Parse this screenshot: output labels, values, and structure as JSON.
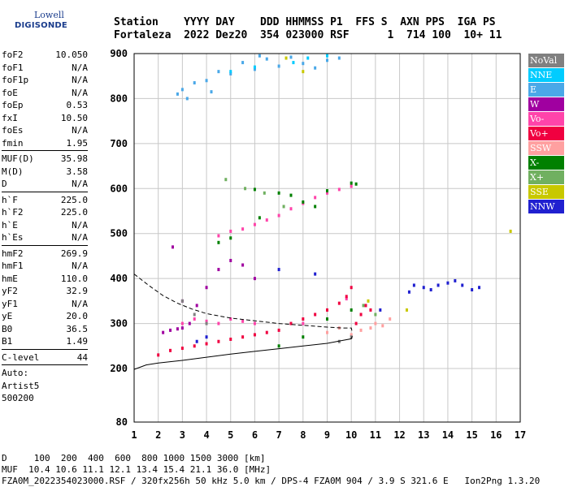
{
  "logo": {
    "line1": "Lowell",
    "line2": "DIGISONDE"
  },
  "header": {
    "row1": "Station    YYYY DAY    DDD HHMMSS P1  FFS S  AXN PPS  IGA PS",
    "row2": "Fortaleza  2022 Dez20  354 023000 RSF      1  714 100  10+ 11"
  },
  "params": {
    "group1": [
      {
        "k": "foF2",
        "v": "10.050"
      },
      {
        "k": "foF1",
        "v": "N/A"
      },
      {
        "k": "foF1p",
        "v": "N/A"
      },
      {
        "k": "foE",
        "v": "N/A"
      },
      {
        "k": "foEp",
        "v": "0.53"
      },
      {
        "k": "fxI",
        "v": "10.50"
      },
      {
        "k": "foEs",
        "v": "N/A"
      },
      {
        "k": "fmin",
        "v": "1.95"
      }
    ],
    "group2": [
      {
        "k": "MUF(D)",
        "v": "35.98"
      },
      {
        "k": "M(D)",
        "v": "3.58"
      },
      {
        "k": "D",
        "v": "N/A"
      }
    ],
    "group3": [
      {
        "k": "h`F",
        "v": "225.0"
      },
      {
        "k": "h`F2",
        "v": "225.0"
      },
      {
        "k": "h`E",
        "v": "N/A"
      },
      {
        "k": "h`Es",
        "v": "N/A"
      }
    ],
    "group4": [
      {
        "k": "hmF2",
        "v": "269.9"
      },
      {
        "k": "hmF1",
        "v": "N/A"
      },
      {
        "k": "hmE",
        "v": "110.0"
      },
      {
        "k": "yF2",
        "v": "32.9"
      },
      {
        "k": "yF1",
        "v": "N/A"
      },
      {
        "k": "yE",
        "v": "20.0"
      },
      {
        "k": "B0",
        "v": "36.5"
      },
      {
        "k": "B1",
        "v": "1.49"
      }
    ],
    "group5": [
      {
        "k": "C-level",
        "v": "44"
      }
    ],
    "auto": [
      "Auto:",
      "Artist5",
      "500200"
    ]
  },
  "legend": [
    {
      "label": "NoVal",
      "color": "#808080"
    },
    {
      "label": "NNE",
      "color": "#00ccff"
    },
    {
      "label": "E",
      "color": "#4aa8e8"
    },
    {
      "label": "W",
      "color": "#a000a0"
    },
    {
      "label": "Vo-",
      "color": "#ff44aa"
    },
    {
      "label": "Vo+",
      "color": "#f00040"
    },
    {
      "label": "SSW",
      "color": "#ffa0a0"
    },
    {
      "label": "X-",
      "color": "#008000"
    },
    {
      "label": "X+",
      "color": "#70b060"
    },
    {
      "label": "SSE",
      "color": "#c8c800"
    },
    {
      "label": "NNW",
      "color": "#2020d0"
    }
  ],
  "footer": {
    "line1": "D     100  200  400  600  800 1000 1500 3000 [km]",
    "line2": "MUF  10.4 10.6 11.1 12.1 13.4 15.4 21.1 36.0 [MHz]",
    "line3": "FZA0M_2022354023000.RSF / 320fx256h 50 kHz 5.0 km / DPS-4 FZA0M 904 / 3.9 S 321.6 E   Ion2Png 1.3.20"
  },
  "chart_data": {
    "type": "scatter",
    "title": "",
    "xlabel": "",
    "ylabel": "",
    "xlim": [
      1,
      17
    ],
    "ylim": [
      80,
      900
    ],
    "x_ticks": [
      1,
      2,
      3,
      4,
      5,
      6,
      7,
      8,
      9,
      10,
      11,
      12,
      13,
      14,
      15,
      16,
      17
    ],
    "y_ticks": [
      80,
      200,
      300,
      400,
      500,
      600,
      700,
      800,
      900
    ],
    "grid": true,
    "series": [
      {
        "name": "E",
        "points": [
          [
            3.0,
            820
          ],
          [
            4.0,
            840
          ],
          [
            5.0,
            855
          ],
          [
            6.0,
            865
          ],
          [
            7.0,
            872
          ],
          [
            8.0,
            878
          ],
          [
            9.0,
            885
          ],
          [
            9.5,
            890
          ],
          [
            5.5,
            880
          ],
          [
            6.5,
            888
          ],
          [
            7.5,
            892
          ],
          [
            4.5,
            860
          ],
          [
            3.5,
            835
          ],
          [
            8.5,
            868
          ],
          [
            2.8,
            810
          ],
          [
            3.2,
            800
          ],
          [
            4.2,
            815
          ],
          [
            6.2,
            895
          ]
        ]
      },
      {
        "name": "NNE",
        "points": [
          [
            7.6,
            880
          ],
          [
            8.2,
            890
          ],
          [
            9.0,
            895
          ],
          [
            6.0,
            870
          ],
          [
            5.0,
            860
          ]
        ]
      },
      {
        "name": "Vo-",
        "points": [
          [
            7.0,
            540
          ],
          [
            7.5,
            555
          ],
          [
            8.0,
            567
          ],
          [
            8.5,
            580
          ],
          [
            9.0,
            590
          ],
          [
            9.5,
            598
          ],
          [
            10.0,
            605
          ],
          [
            4.5,
            495
          ],
          [
            5.0,
            505
          ],
          [
            5.5,
            510
          ],
          [
            6.0,
            520
          ],
          [
            6.5,
            530
          ],
          [
            3.0,
            300
          ],
          [
            3.5,
            310
          ],
          [
            4.0,
            305
          ],
          [
            4.5,
            300
          ],
          [
            5.0,
            310
          ],
          [
            5.5,
            305
          ],
          [
            6.0,
            300
          ],
          [
            8.0,
            300
          ],
          [
            9.0,
            330
          ],
          [
            9.8,
            355
          ]
        ]
      },
      {
        "name": "Vo+",
        "points": [
          [
            2.0,
            230
          ],
          [
            2.5,
            240
          ],
          [
            3.0,
            245
          ],
          [
            3.5,
            250
          ],
          [
            4.0,
            255
          ],
          [
            4.5,
            260
          ],
          [
            5.0,
            265
          ],
          [
            5.5,
            270
          ],
          [
            6.0,
            275
          ],
          [
            6.5,
            280
          ],
          [
            7.0,
            285
          ],
          [
            7.5,
            300
          ],
          [
            8.0,
            310
          ],
          [
            8.5,
            320
          ],
          [
            9.0,
            330
          ],
          [
            9.5,
            345
          ],
          [
            9.8,
            360
          ],
          [
            10.0,
            380
          ],
          [
            10.2,
            300
          ],
          [
            10.4,
            320
          ],
          [
            10.6,
            340
          ],
          [
            10.8,
            330
          ]
        ]
      },
      {
        "name": "X-",
        "points": [
          [
            6.0,
            598
          ],
          [
            7.0,
            590
          ],
          [
            7.5,
            585
          ],
          [
            8.0,
            570
          ],
          [
            8.5,
            560
          ],
          [
            9.0,
            595
          ],
          [
            10.0,
            612
          ],
          [
            10.2,
            610
          ],
          [
            4.5,
            480
          ],
          [
            5.0,
            490
          ],
          [
            6.2,
            535
          ],
          [
            7.0,
            250
          ],
          [
            8.0,
            270
          ],
          [
            9.0,
            310
          ],
          [
            10.0,
            330
          ]
        ]
      },
      {
        "name": "W",
        "points": [
          [
            2.2,
            280
          ],
          [
            2.5,
            285
          ],
          [
            2.8,
            288
          ],
          [
            3.0,
            290
          ],
          [
            3.3,
            300
          ],
          [
            3.6,
            340
          ],
          [
            4.0,
            380
          ],
          [
            4.5,
            420
          ],
          [
            5.0,
            440
          ],
          [
            5.5,
            430
          ],
          [
            6.0,
            400
          ],
          [
            3.0,
            350
          ],
          [
            2.6,
            470
          ]
        ]
      },
      {
        "name": "SSW",
        "points": [
          [
            10.0,
            275
          ],
          [
            10.4,
            285
          ],
          [
            10.8,
            290
          ],
          [
            11.0,
            300
          ],
          [
            11.3,
            295
          ],
          [
            11.6,
            310
          ],
          [
            9.5,
            290
          ],
          [
            9.0,
            280
          ]
        ]
      },
      {
        "name": "NNW",
        "points": [
          [
            13.0,
            380
          ],
          [
            13.3,
            375
          ],
          [
            13.6,
            385
          ],
          [
            14.0,
            390
          ],
          [
            14.3,
            395
          ],
          [
            14.6,
            385
          ],
          [
            15.0,
            375
          ],
          [
            15.3,
            380
          ],
          [
            12.4,
            370
          ],
          [
            12.6,
            385
          ],
          [
            4.0,
            270
          ],
          [
            3.6,
            260
          ],
          [
            7.0,
            420
          ],
          [
            8.5,
            410
          ],
          [
            11.2,
            330
          ]
        ]
      },
      {
        "name": "X+",
        "points": [
          [
            4.8,
            620
          ],
          [
            5.6,
            600
          ],
          [
            6.4,
            590
          ],
          [
            7.2,
            560
          ],
          [
            10.5,
            340
          ],
          [
            11.0,
            320
          ]
        ]
      },
      {
        "name": "SSE",
        "points": [
          [
            7.3,
            890
          ],
          [
            8.0,
            860
          ],
          [
            16.6,
            505
          ],
          [
            12.3,
            330
          ],
          [
            10.7,
            350
          ]
        ]
      },
      {
        "name": "NoVal",
        "points": [
          [
            3.0,
            350
          ],
          [
            3.5,
            320
          ],
          [
            4.0,
            300
          ],
          [
            10.0,
            270
          ],
          [
            9.5,
            260
          ]
        ]
      }
    ],
    "curves": {
      "dashed_profile": [
        [
          1.0,
          410
        ],
        [
          1.6,
          385
        ],
        [
          2.2,
          362
        ],
        [
          2.8,
          345
        ],
        [
          3.4,
          332
        ],
        [
          4.0,
          322
        ],
        [
          5.0,
          312
        ],
        [
          6.0,
          306
        ],
        [
          7.0,
          300
        ],
        [
          8.0,
          296
        ],
        [
          9.0,
          292
        ],
        [
          9.6,
          290
        ],
        [
          10.0,
          290
        ],
        [
          10.04,
          280
        ]
      ],
      "solid_profile": [
        [
          1.0,
          198
        ],
        [
          1.5,
          208
        ],
        [
          2.0,
          212
        ],
        [
          3.0,
          218
        ],
        [
          4.0,
          225
        ],
        [
          5.0,
          232
        ],
        [
          6.0,
          238
        ],
        [
          7.0,
          244
        ],
        [
          8.0,
          250
        ],
        [
          9.0,
          256
        ],
        [
          9.6,
          262
        ],
        [
          10.0,
          266
        ],
        [
          10.04,
          272
        ]
      ]
    }
  }
}
